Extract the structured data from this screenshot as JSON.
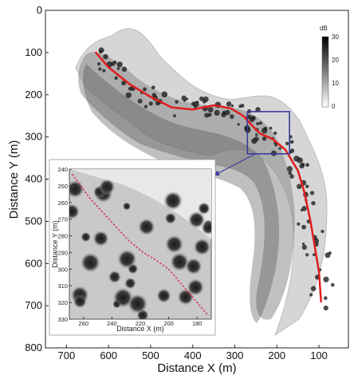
{
  "chart_data": {
    "type": "heatmap",
    "xlabel": "Distance X (m)",
    "ylabel": "Distance Y (m)",
    "xlim": [
      750,
      30
    ],
    "ylim": [
      0,
      800
    ],
    "x_ticks": [
      "700",
      "600",
      "500",
      "400",
      "300",
      "200",
      "100"
    ],
    "y_ticks": [
      "0",
      "100",
      "200",
      "300",
      "400",
      "500",
      "600",
      "700",
      "800"
    ],
    "colorbar": {
      "unit": "dB",
      "ticks": [
        "30",
        "20",
        "10",
        "0"
      ],
      "range": [
        0,
        30
      ]
    },
    "trajectory": {
      "color": "#e11d1d",
      "x": [
        630,
        600,
        550,
        500,
        450,
        400,
        350,
        310,
        280,
        260,
        240,
        210,
        180,
        150,
        135,
        120,
        110,
        100,
        95
      ],
      "y": [
        100,
        135,
        175,
        205,
        230,
        235,
        225,
        232,
        250,
        272,
        292,
        305,
        330,
        380,
        430,
        500,
        560,
        620,
        690
      ]
    },
    "zoom_box": {
      "x": [
        270,
        170
      ],
      "y": [
        240,
        340
      ],
      "color": "#3a3aa0"
    },
    "inset": {
      "xlabel": "Distance X (m)",
      "ylabel": "Distance Y (m)",
      "xlim": [
        270,
        170
      ],
      "ylim": [
        240,
        330
      ],
      "x_ticks": [
        "260",
        "240",
        "220",
        "200",
        "180"
      ],
      "y_ticks": [
        "240",
        "250",
        "260",
        "270",
        "280",
        "290",
        "300",
        "310",
        "320",
        "330"
      ],
      "trajectory": {
        "color": "#d83a5a",
        "x": [
          268,
          255,
          240,
          228,
          218,
          210,
          200,
          192,
          185,
          178,
          172
        ],
        "y": [
          243,
          258,
          272,
          283,
          290,
          294,
          300,
          308,
          315,
          322,
          328
        ]
      }
    }
  }
}
